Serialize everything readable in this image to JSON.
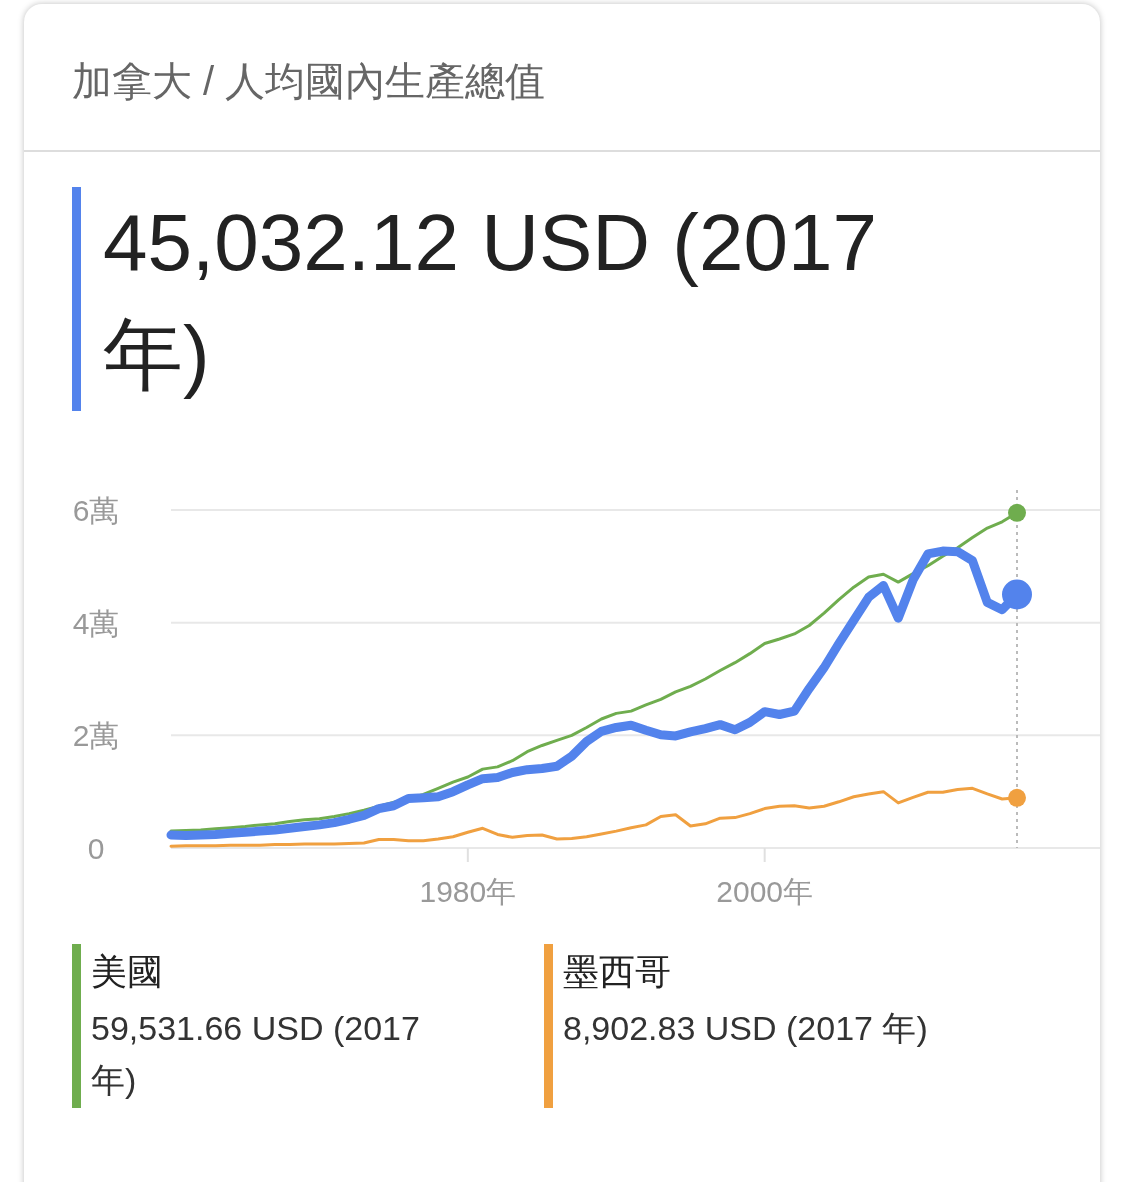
{
  "chart_data": {
    "type": "line",
    "title": "加拿大 / 人均國內生產總值",
    "subtitle": "45,032.12 USD (2017 年)",
    "x": [
      1960,
      1961,
      1962,
      1963,
      1964,
      1965,
      1966,
      1967,
      1968,
      1969,
      1970,
      1971,
      1972,
      1973,
      1974,
      1975,
      1976,
      1977,
      1978,
      1979,
      1980,
      1981,
      1982,
      1983,
      1984,
      1985,
      1986,
      1987,
      1988,
      1989,
      1990,
      1991,
      1992,
      1993,
      1994,
      1995,
      1996,
      1997,
      1998,
      1999,
      2000,
      2001,
      2002,
      2003,
      2004,
      2005,
      2006,
      2007,
      2008,
      2009,
      2010,
      2011,
      2012,
      2013,
      2014,
      2015,
      2016,
      2017
    ],
    "series": [
      {
        "color": "#5383ec",
        "values": [
          0.23,
          0.22,
          0.23,
          0.24,
          0.26,
          0.28,
          0.3,
          0.32,
          0.35,
          0.38,
          0.41,
          0.45,
          0.51,
          0.58,
          0.7,
          0.75,
          0.88,
          0.89,
          0.91,
          1.0,
          1.12,
          1.23,
          1.25,
          1.34,
          1.39,
          1.41,
          1.45,
          1.63,
          1.89,
          2.07,
          2.14,
          2.18,
          2.09,
          2.01,
          1.99,
          2.06,
          2.12,
          2.19,
          2.1,
          2.23,
          2.42,
          2.37,
          2.43,
          2.83,
          3.2,
          3.63,
          4.04,
          4.45,
          4.66,
          4.08,
          4.76,
          5.22,
          5.27,
          5.26,
          5.1,
          4.36,
          4.23,
          4.5
        ]
      },
      {
        "name": "美國",
        "color": "#6fad4e",
        "values": [
          0.3,
          0.31,
          0.32,
          0.34,
          0.36,
          0.38,
          0.41,
          0.43,
          0.47,
          0.5,
          0.52,
          0.56,
          0.61,
          0.67,
          null,
          null,
          null,
          0.95,
          1.06,
          1.17,
          1.26,
          1.4,
          1.44,
          1.55,
          1.71,
          1.82,
          1.91,
          2.0,
          2.14,
          2.29,
          2.39,
          2.43,
          2.54,
          2.64,
          2.77,
          2.87,
          3.0,
          3.15,
          3.29,
          3.45,
          3.63,
          3.71,
          3.8,
          3.95,
          4.17,
          4.41,
          4.63,
          4.81,
          4.86,
          4.72,
          4.87,
          5.01,
          5.18,
          5.33,
          5.51,
          5.68,
          5.79,
          5.95
        ]
      },
      {
        "name": "墨西哥",
        "color": "#f0a040",
        "values": [
          0.03,
          0.04,
          0.04,
          0.04,
          0.05,
          0.05,
          0.05,
          0.06,
          0.06,
          0.07,
          0.07,
          0.07,
          0.08,
          0.09,
          0.15,
          0.15,
          0.13,
          0.13,
          0.16,
          0.2,
          0.28,
          0.35,
          0.24,
          0.19,
          0.22,
          0.23,
          0.16,
          0.17,
          0.2,
          0.25,
          0.3,
          0.36,
          0.41,
          0.56,
          0.59,
          0.39,
          0.43,
          0.53,
          0.54,
          0.61,
          0.7,
          0.74,
          0.75,
          0.71,
          0.74,
          0.82,
          0.91,
          0.96,
          1.0,
          0.8,
          0.9,
          0.99,
          0.99,
          1.04,
          1.06,
          0.96,
          0.87,
          0.89
        ]
      }
    ],
    "xlim": [
      1960,
      2017
    ],
    "ylim": [
      0,
      6
    ],
    "xticks": [
      {
        "value": 1980,
        "label": "1980年"
      },
      {
        "value": 2000,
        "label": "2000年"
      }
    ],
    "yticks": [
      0,
      {
        "value": 2,
        "label": "2萬"
      },
      {
        "value": 4,
        "label": "4萬"
      },
      {
        "value": 6,
        "label": "6萬"
      }
    ],
    "grid": "y",
    "legend": "bottom",
    "ref_lines": [
      {
        "axis": "x",
        "value": 2017,
        "color": "#bbbbbb",
        "line_style": "dotted"
      }
    ],
    "annotations": [
      "59,531.66 USD (2017 年)",
      "8,902.83 USD (2017 年)"
    ]
  }
}
